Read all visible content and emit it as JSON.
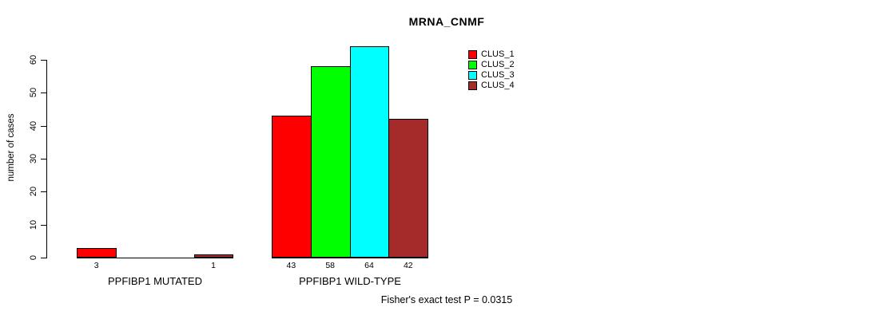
{
  "chart_data": {
    "type": "bar",
    "title": "MRNA_CNMF",
    "ylabel": "number of cases",
    "xlabel": "",
    "categories": [
      "PPFIBP1 MUTATED",
      "PPFIBP1 WILD-TYPE"
    ],
    "series": [
      {
        "name": "CLUS_1",
        "color": "#ff0000",
        "values": [
          3,
          43
        ]
      },
      {
        "name": "CLUS_2",
        "color": "#00ff00",
        "values": [
          0,
          58
        ]
      },
      {
        "name": "CLUS_3",
        "color": "#00ffff",
        "values": [
          0,
          64
        ]
      },
      {
        "name": "CLUS_4",
        "color": "#a52a2a",
        "values": [
          1,
          42
        ]
      }
    ],
    "bar_value_labels": {
      "group_1": [
        "3",
        "",
        "",
        "1"
      ],
      "group_2": [
        "43",
        "58",
        "64",
        "42"
      ]
    },
    "ylim": [
      0,
      60
    ],
    "yticks": [
      0,
      10,
      20,
      30,
      40,
      50,
      60
    ],
    "grid": false,
    "legend_position": "top-right",
    "legend_entries": [
      "CLUS_1",
      "CLUS_2",
      "CLUS_3",
      "CLUS_4"
    ],
    "annotation": "Fisher's exact test P = 0.0315"
  }
}
